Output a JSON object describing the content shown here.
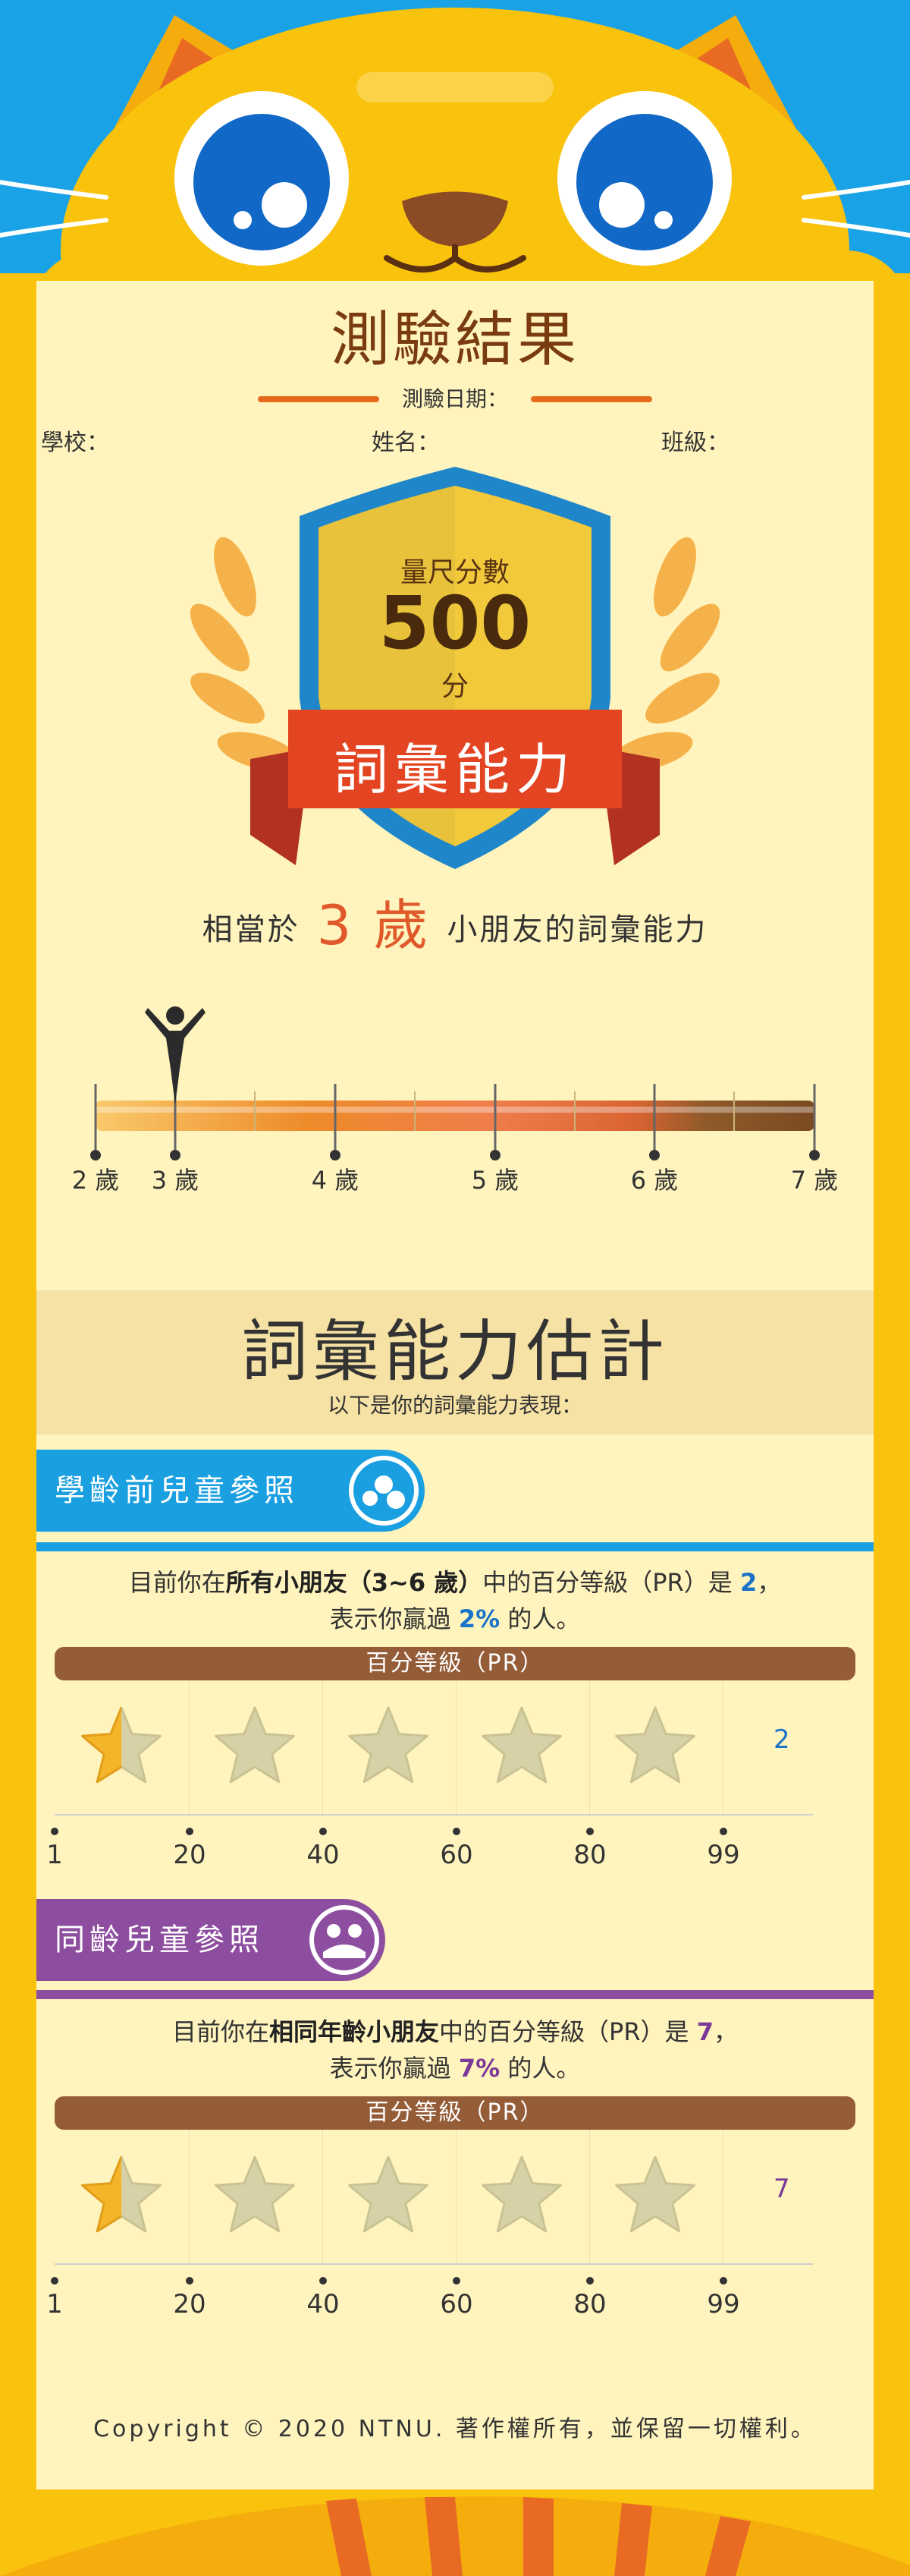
{
  "header": {
    "title": "測驗結果",
    "date_label": "測驗日期：",
    "school_label": "學校：",
    "name_label": "姓名：",
    "class_label": "班級："
  },
  "badge": {
    "score_label": "量尺分數",
    "score_value": "500",
    "score_unit": "分",
    "ribbon_text": "詞彙能力"
  },
  "equivalent": {
    "prefix": "相當於",
    "age": "3 歲",
    "suffix": "小朋友的詞彙能力"
  },
  "age_scale": {
    "ticks": [
      "2 歲",
      "3 歲",
      "4 歲",
      "5 歲",
      "6 歲",
      "7 歲"
    ],
    "marker_age": 3,
    "min_age": 2,
    "max_age": 7
  },
  "section2": {
    "title": "詞彙能力估計",
    "subtitle": "以下是你的詞彙能力表現："
  },
  "preschool": {
    "tag": "學齡前兒童參照",
    "text_pre": "目前你在",
    "text_bold": "所有小朋友（3~6 歲）",
    "text_mid": "中的百分等級（PR）是",
    "pr": "2",
    "text_end": "，",
    "line2_pre": "表示你贏過",
    "pct": "2%",
    "line2_end": "的人。",
    "bar_label": "百分等級（PR）",
    "pr_value": 2,
    "color": "#1a73c8"
  },
  "sameage": {
    "tag": "同齡兒童參照",
    "text_pre": "目前你在",
    "text_bold": "相同年齡小朋友",
    "text_mid": "中的百分等級（PR）是",
    "pr": "7",
    "text_end": "，",
    "line2_pre": "表示你贏過",
    "pct": "7%",
    "line2_end": "的人。",
    "bar_label": "百分等級（PR）",
    "pr_value": 7,
    "color": "#7b3a9a"
  },
  "axis_labels": [
    "1",
    "20",
    "40",
    "60",
    "80",
    "99"
  ],
  "footer": {
    "copyright": "Copyright © 2020 NTNU. 著作權所有，並保留一切權利。"
  },
  "colors": {
    "background": "#1aa2e6",
    "frame": "#f9c20d",
    "card": "#fff4bd",
    "accent_orange": "#e56a1d",
    "blue_tag": "#1a9fe0",
    "purple_tag": "#8e4ea0"
  }
}
